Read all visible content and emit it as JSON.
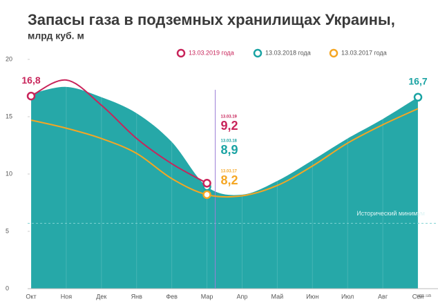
{
  "chart_data": {
    "type": "line",
    "title": "Запасы газа в подземных хранилищах Украины,",
    "subtitle": "млрд куб. м",
    "source": "ugs.ua",
    "categories": [
      "Окт",
      "Ноя",
      "Дек",
      "Янв",
      "Фев",
      "Мар",
      "Апр",
      "Май",
      "Июн",
      "Июл",
      "Авг",
      "Сен"
    ],
    "ylim": [
      0,
      20
    ],
    "yticks": [
      0,
      5,
      10,
      15,
      20
    ],
    "reference_line": {
      "label": "Исторический минимум",
      "value": 5.7,
      "color": "#7fd3d3"
    },
    "series": [
      {
        "name": "13.03.2018 года",
        "style": "area",
        "color": "#1aa3a3",
        "date_label": "13.03.18",
        "values": [
          17.0,
          17.6,
          16.7,
          15.3,
          12.8,
          8.9,
          8.2,
          9.4,
          11.2,
          13.1,
          14.8,
          16.7
        ],
        "value_labels": [
          null,
          null,
          null,
          null,
          null,
          "8,9",
          null,
          null,
          null,
          null,
          null,
          "16,7"
        ]
      },
      {
        "name": "13.03.2017 года",
        "style": "line",
        "color": "#f5a623",
        "date_label": "13.03.17",
        "values": [
          14.7,
          14.0,
          13.1,
          11.8,
          9.6,
          8.2,
          8.1,
          9.0,
          10.7,
          12.7,
          14.3,
          15.7
        ],
        "value_labels": [
          null,
          null,
          null,
          null,
          null,
          "8,2",
          null,
          null,
          null,
          null,
          null,
          null
        ]
      },
      {
        "name": "13.03.2019 года",
        "style": "line",
        "color": "#c8245a",
        "date_label": "13.03.19",
        "values": [
          16.8,
          18.2,
          16.0,
          13.1,
          10.9,
          9.2,
          null,
          null,
          null,
          null,
          null,
          null
        ],
        "value_labels": [
          "16,8",
          null,
          null,
          null,
          null,
          "9,2",
          null,
          null,
          null,
          null,
          null,
          null
        ]
      }
    ]
  }
}
